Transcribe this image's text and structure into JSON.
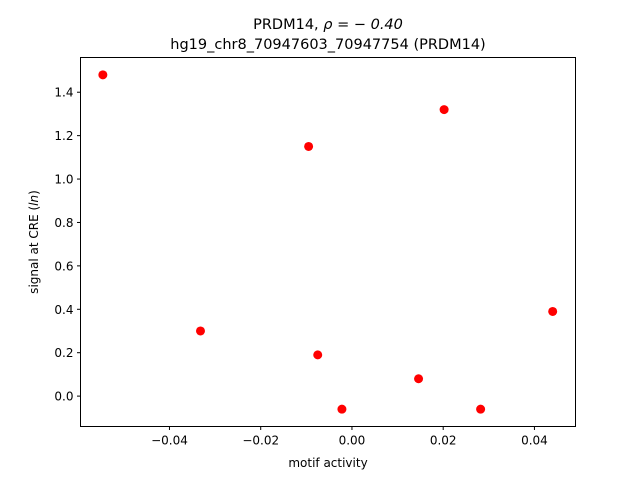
{
  "chart_data": {
    "type": "scatter",
    "title_line1_prefix": "PRDM14, ",
    "title_line1_math": "ρ = − 0.40",
    "title_line2": "hg19_chr8_70947603_70947754 (PRDM14)",
    "xlabel": "motif activity",
    "ylabel_prefix": "signal at CRE (",
    "ylabel_italic": "ln",
    "ylabel_suffix": ")",
    "xlim": [
      -0.0595,
      0.049
    ],
    "ylim": [
      -0.14,
      1.56
    ],
    "xticks": [
      {
        "value": -0.04,
        "label": "−0.04"
      },
      {
        "value": -0.02,
        "label": "−0.02"
      },
      {
        "value": 0.0,
        "label": "0.00"
      },
      {
        "value": 0.02,
        "label": "0.02"
      },
      {
        "value": 0.04,
        "label": "0.04"
      }
    ],
    "yticks": [
      {
        "value": 0.0,
        "label": "0.0"
      },
      {
        "value": 0.2,
        "label": "0.2"
      },
      {
        "value": 0.4,
        "label": "0.4"
      },
      {
        "value": 0.6,
        "label": "0.6"
      },
      {
        "value": 0.8,
        "label": "0.8"
      },
      {
        "value": 1.0,
        "label": "1.0"
      },
      {
        "value": 1.2,
        "label": "1.2"
      },
      {
        "value": 1.4,
        "label": "1.4"
      }
    ],
    "marker_color": "#ff0000",
    "grid": false,
    "points": [
      {
        "x": -0.0546,
        "y": 1.48
      },
      {
        "x": -0.0332,
        "y": 0.3
      },
      {
        "x": -0.0095,
        "y": 1.15
      },
      {
        "x": -0.0075,
        "y": 0.19
      },
      {
        "x": -0.0022,
        "y": -0.06
      },
      {
        "x": 0.0146,
        "y": 0.08
      },
      {
        "x": 0.0202,
        "y": 1.32
      },
      {
        "x": 0.0282,
        "y": -0.06
      },
      {
        "x": 0.044,
        "y": 0.39
      }
    ]
  }
}
